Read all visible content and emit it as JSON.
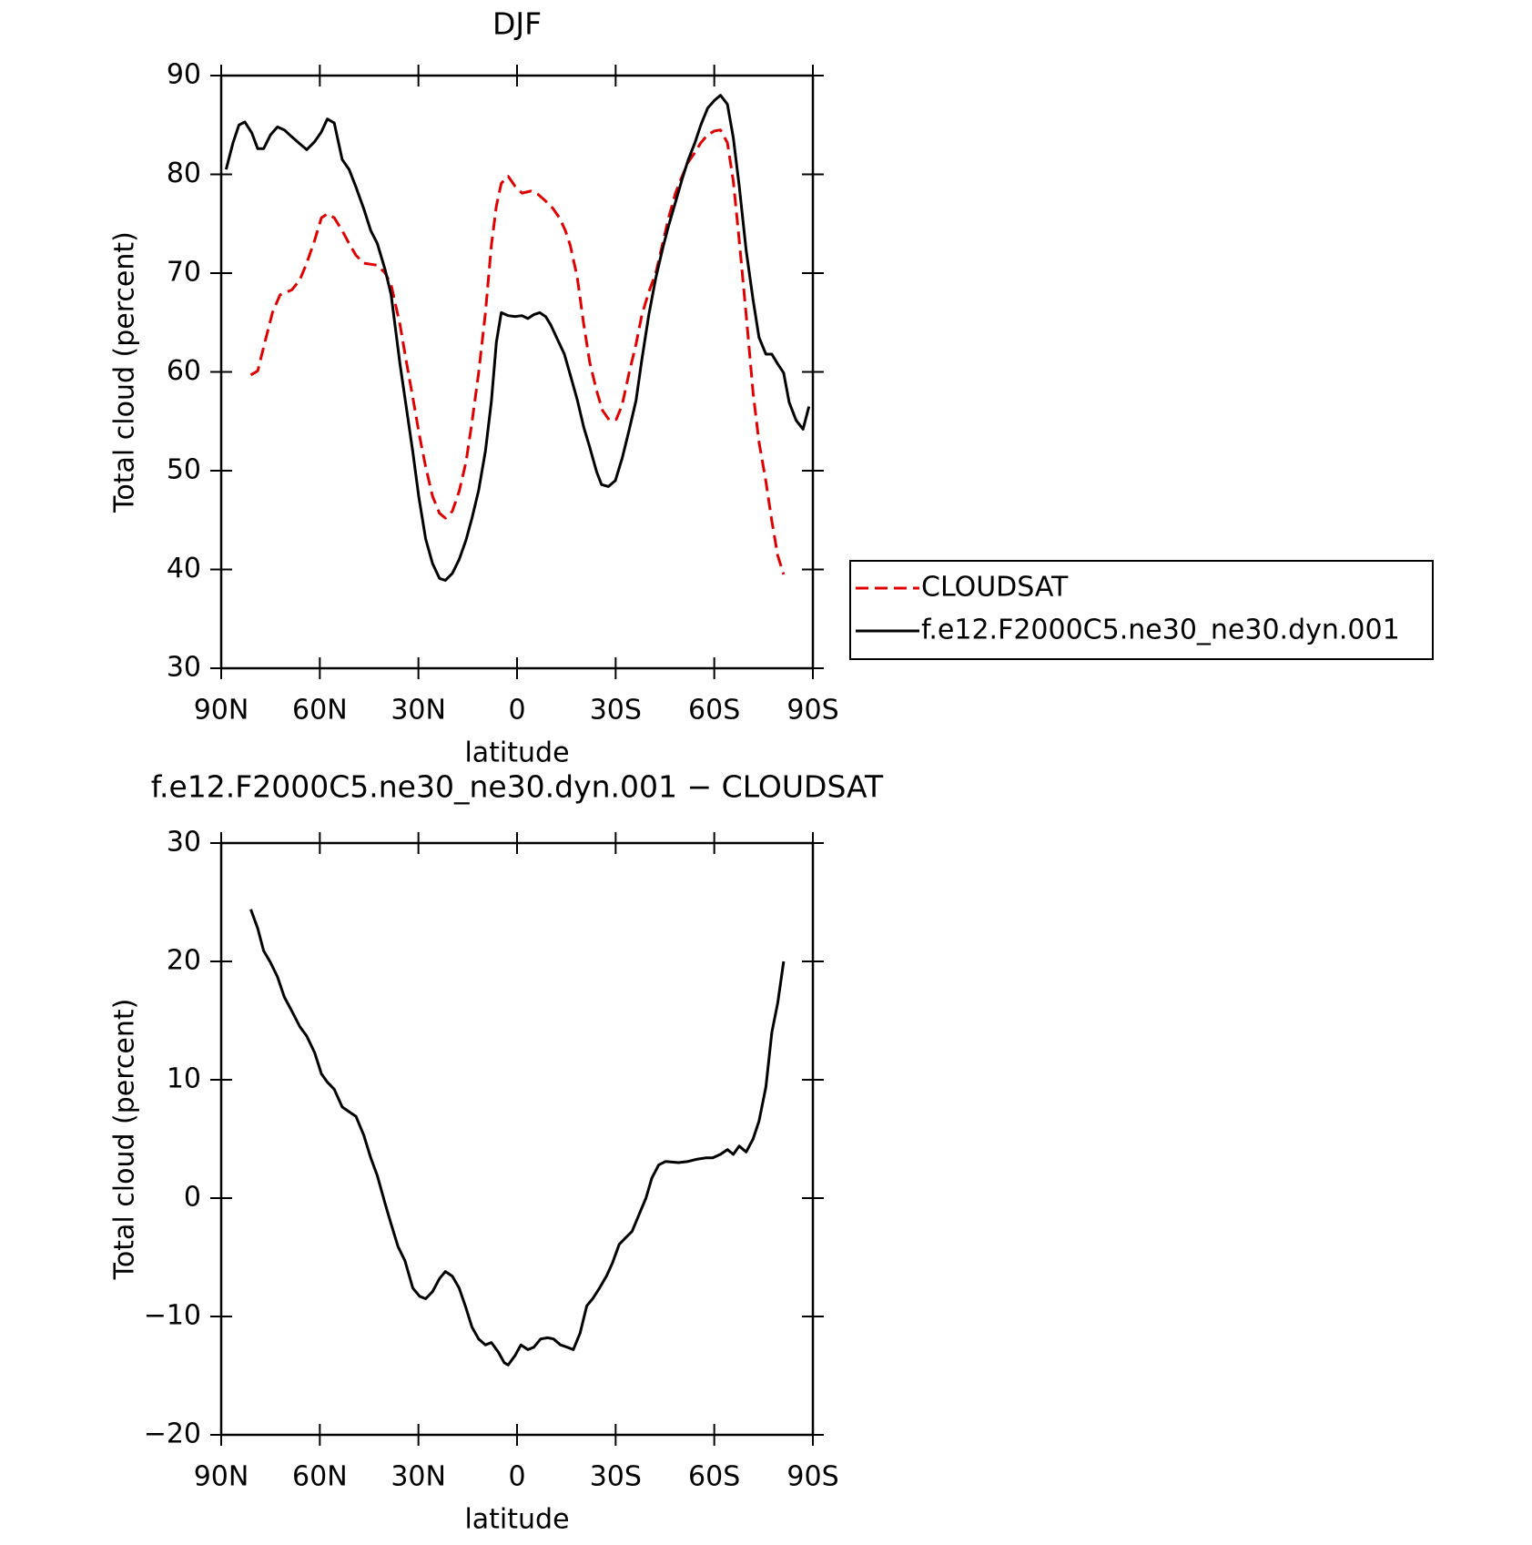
{
  "chart_data": [
    {
      "type": "line",
      "title": "DJF",
      "xlabel": "latitude",
      "ylabel": "Total cloud (percent)",
      "xlim": [
        90,
        -90
      ],
      "xticks": [
        {
          "value": 90,
          "label": "90N"
        },
        {
          "value": 60,
          "label": "60N"
        },
        {
          "value": 30,
          "label": "30N"
        },
        0,
        {
          "value": -30,
          "label": "30S"
        },
        {
          "value": -60,
          "label": "60S"
        },
        {
          "value": -90,
          "label": "90S"
        }
      ],
      "ylim": [
        30,
        90
      ],
      "yticks": [
        30,
        40,
        50,
        60,
        70,
        80,
        90
      ],
      "legend": "right",
      "series": [
        {
          "name": "CLOUDSAT",
          "color": "#e00000",
          "dashed": true,
          "x": [
            81,
            78.9,
            76.5,
            74.4,
            72.1,
            68.5,
            66.1,
            64.0,
            61.6,
            59.5,
            57.7,
            55.6,
            53.2,
            51.1,
            49.0,
            46.6,
            42.5,
            40.1,
            38.3,
            35.6,
            33.8,
            31.7,
            29.6,
            27.8,
            25.7,
            23.6,
            21.8,
            19.7,
            17.6,
            15.5,
            13.7,
            11.7,
            9.6,
            7.8,
            6.3,
            4.8,
            2.7,
            0.6,
            -1.5,
            -4.2,
            -6.3,
            -8.7,
            -10.8,
            -12.9,
            -14.7,
            -16.2,
            -18.3,
            -20.3,
            -22.1,
            -24.2,
            -26.0,
            -28.1,
            -30.2,
            -32.0,
            -34.1,
            -36.2,
            -38.0,
            -40.1,
            -42.2,
            -44.3,
            -46.1,
            -48.2,
            -50.2,
            -52.0,
            -54.1,
            -55.9,
            -58.0,
            -60.1,
            -61.9,
            -64.0,
            -65.8,
            -67.6,
            -69.7,
            -71.8,
            -73.6,
            -75.7,
            -77.5,
            -79.3,
            -81.1
          ],
          "values": [
            59.7,
            60.1,
            63.3,
            66.0,
            67.8,
            68.3,
            69.3,
            71.0,
            73.3,
            75.6,
            76.0,
            75.6,
            74.3,
            73.0,
            71.8,
            71.0,
            70.8,
            70.0,
            68.8,
            64.8,
            61.3,
            57.4,
            53.4,
            50.4,
            47.4,
            45.7,
            45.2,
            45.9,
            47.9,
            50.9,
            54.9,
            59.9,
            66.0,
            72.8,
            76.8,
            79.1,
            79.8,
            78.8,
            78.1,
            78.3,
            78.0,
            77.3,
            76.6,
            75.6,
            74.3,
            72.8,
            69.6,
            64.8,
            61.0,
            58.1,
            56.1,
            55.1,
            55.2,
            56.7,
            59.9,
            62.8,
            65.8,
            68.1,
            70.0,
            73.0,
            75.6,
            78.1,
            79.8,
            81.2,
            82.2,
            83.2,
            84.0,
            84.4,
            84.5,
            83.2,
            79.3,
            73.3,
            65.8,
            57.9,
            52.9,
            48.9,
            44.9,
            41.4,
            39.5
          ]
        },
        {
          "name": "f.e12.F2000C5.ne30_ne30.dyn.001",
          "color": "#000000",
          "dashed": false,
          "x": [
            88.5,
            86.4,
            84.6,
            82.8,
            80.7,
            78.9,
            77.1,
            75.0,
            72.9,
            70.8,
            68.5,
            66.1,
            64.0,
            61.6,
            59.5,
            57.7,
            55.6,
            53.2,
            51.1,
            49.0,
            46.6,
            44.5,
            42.5,
            40.1,
            38.3,
            35.6,
            31.7,
            29.9,
            27.8,
            25.7,
            23.6,
            21.8,
            19.7,
            17.6,
            15.5,
            13.7,
            11.7,
            9.6,
            7.8,
            6.3,
            4.8,
            2.7,
            0.6,
            -1.5,
            -3.3,
            -5.1,
            -6.9,
            -8.7,
            -10.2,
            -12.3,
            -14.4,
            -16.2,
            -18.3,
            -20.3,
            -22.1,
            -24.2,
            -25.7,
            -27.8,
            -29.9,
            -32.0,
            -34.1,
            -36.2,
            -38.0,
            -40.1,
            -42.2,
            -44.3,
            -46.1,
            -48.2,
            -50.2,
            -52.0,
            -54.1,
            -55.9,
            -58.0,
            -60.1,
            -61.9,
            -64.0,
            -65.8,
            -67.6,
            -69.7,
            -71.8,
            -73.6,
            -75.7,
            -77.5,
            -79.3,
            -81.1,
            -82.8,
            -84.9,
            -87.0,
            -88.8
          ],
          "values": [
            80.5,
            83.2,
            85.0,
            85.3,
            84.2,
            82.6,
            82.6,
            84.0,
            84.8,
            84.5,
            83.8,
            83.1,
            82.5,
            83.3,
            84.3,
            85.6,
            85.2,
            81.5,
            80.5,
            78.7,
            76.5,
            74.3,
            73.0,
            70.3,
            67.8,
            60.8,
            51.9,
            47.4,
            43.1,
            40.6,
            39.1,
            38.9,
            39.6,
            41.0,
            43.0,
            45.2,
            48.0,
            52.0,
            57.0,
            63.0,
            66.0,
            65.7,
            65.6,
            65.7,
            65.4,
            65.8,
            66.0,
            65.6,
            64.8,
            63.3,
            61.8,
            59.7,
            57.2,
            54.4,
            52.4,
            49.9,
            48.6,
            48.4,
            49.0,
            51.3,
            54.1,
            57.1,
            61.3,
            65.8,
            69.5,
            72.5,
            74.8,
            77.2,
            79.5,
            81.4,
            83.2,
            85.0,
            86.7,
            87.5,
            88.0,
            87.1,
            83.7,
            78.8,
            72.3,
            67.3,
            63.5,
            61.8,
            61.8,
            60.8,
            59.9,
            56.9,
            55.1,
            54.2,
            56.5
          ]
        }
      ]
    },
    {
      "type": "line",
      "title": "f.e12.F2000C5.ne30_ne30.dyn.001 − CLOUDSAT",
      "xlabel": "latitude",
      "ylabel": "Total cloud (percent)",
      "xlim": [
        90,
        -90
      ],
      "xticks": [
        {
          "value": 90,
          "label": "90N"
        },
        {
          "value": 60,
          "label": "60N"
        },
        {
          "value": 30,
          "label": "30N"
        },
        0,
        {
          "value": -30,
          "label": "30S"
        },
        {
          "value": -60,
          "label": "60S"
        },
        {
          "value": -90,
          "label": "90S"
        }
      ],
      "ylim": [
        -20,
        30
      ],
      "yticks": [
        {
          "value": -20,
          "label": "−20"
        },
        {
          "value": -10,
          "label": "−10"
        },
        0,
        10,
        20,
        30
      ],
      "series": [
        {
          "color": "#000000",
          "dashed": false,
          "x": [
            81,
            78.9,
            77.1,
            75.0,
            72.9,
            70.8,
            68.5,
            66.1,
            64.0,
            61.6,
            59.5,
            57.7,
            55.6,
            53.2,
            51.1,
            49.0,
            46.6,
            44.5,
            42.5,
            40.1,
            38.3,
            36.2,
            34.1,
            31.7,
            29.6,
            27.8,
            25.7,
            23.6,
            21.8,
            19.7,
            17.6,
            15.5,
            13.7,
            11.7,
            9.6,
            7.8,
            5.7,
            3.9,
            2.7,
            0.6,
            -1.2,
            -3.3,
            -5.1,
            -7.2,
            -9.3,
            -11.1,
            -13.2,
            -15.3,
            -17.1,
            -19.2,
            -21.2,
            -23.0,
            -25.1,
            -27.2,
            -29.0,
            -31.1,
            -33.2,
            -35.0,
            -37.1,
            -39.2,
            -41.0,
            -43.1,
            -45.2,
            -49.1,
            -52.0,
            -55.0,
            -57.4,
            -59.5,
            -61.9,
            -64.0,
            -65.8,
            -67.6,
            -69.7,
            -71.8,
            -73.6,
            -75.7,
            -77.5,
            -79.3,
            -81.1
          ],
          "values": [
            24.4,
            22.8,
            20.9,
            19.9,
            18.7,
            17.0,
            15.8,
            14.5,
            13.7,
            12.3,
            10.5,
            9.8,
            9.2,
            7.7,
            7.3,
            6.9,
            5.3,
            3.4,
            1.9,
            -0.5,
            -2.2,
            -4.1,
            -5.3,
            -7.6,
            -8.3,
            -8.5,
            -7.9,
            -6.8,
            -6.2,
            -6.6,
            -7.6,
            -9.3,
            -10.9,
            -11.9,
            -12.4,
            -12.2,
            -13.0,
            -13.9,
            -14.1,
            -13.3,
            -12.4,
            -12.8,
            -12.6,
            -11.9,
            -11.8,
            -11.9,
            -12.4,
            -12.6,
            -12.8,
            -11.4,
            -9.1,
            -8.5,
            -7.6,
            -6.6,
            -5.5,
            -3.9,
            -3.3,
            -2.8,
            -1.4,
            0.0,
            1.7,
            2.8,
            3.1,
            3.0,
            3.1,
            3.3,
            3.4,
            3.4,
            3.7,
            4.1,
            3.7,
            4.4,
            3.9,
            5.0,
            6.5,
            9.4,
            14.0,
            16.5,
            20.0
          ]
        }
      ]
    }
  ]
}
